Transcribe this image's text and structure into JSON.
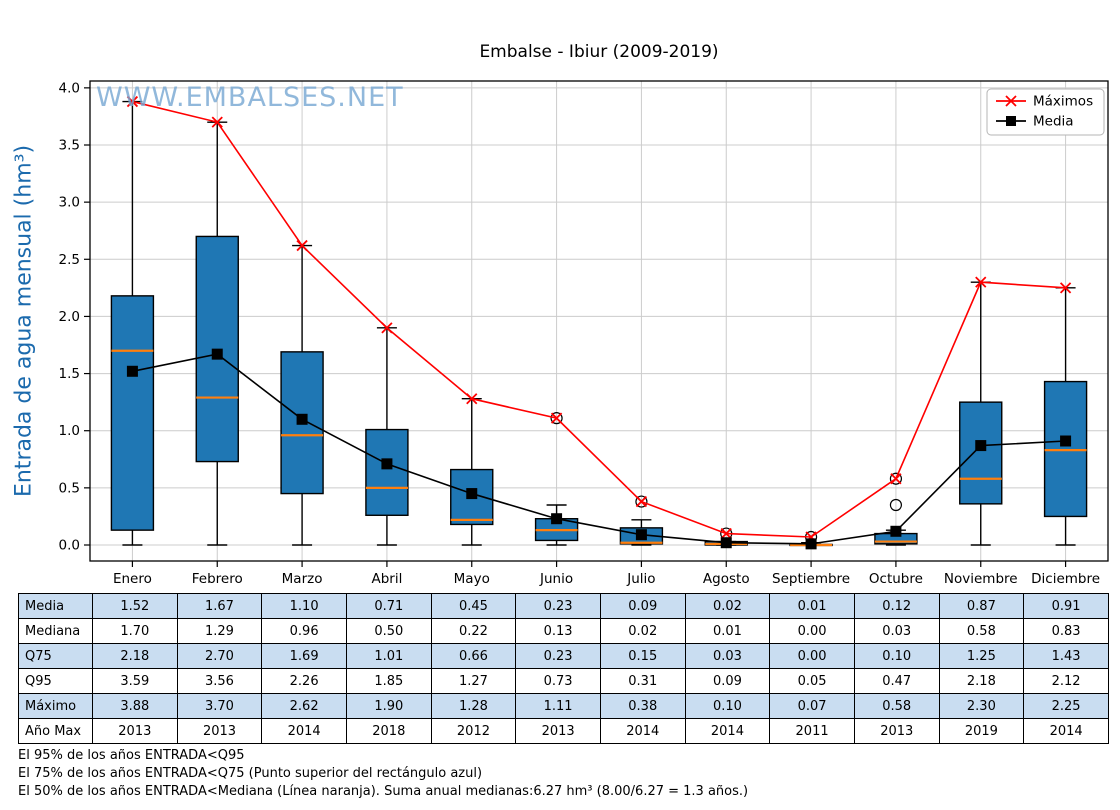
{
  "title": "Embalse - Ibiur (2009-2019)",
  "watermark": "WWW.EMBALSES.NET",
  "ylabel": "Entrada de agua mensual (hm³)",
  "colors": {
    "box_fill": "#1f77b4",
    "box_edge": "#000000",
    "median_line": "#ff7f0e",
    "maximos_line": "#ff0000",
    "media_line": "#000000",
    "grid": "#cccccc",
    "frame": "#000000",
    "table_alt_row": "#c9ddf1",
    "watermark": "#76a7d3",
    "ylabel": "#1b6aad",
    "legend_border": "#b5b5b5"
  },
  "chart_data": {
    "type": "boxplot_with_lines",
    "title": "Embalse - Ibiur (2009-2019)",
    "ylabel": "Entrada de agua mensual (hm³)",
    "categories": [
      "Enero",
      "Febrero",
      "Marzo",
      "Abril",
      "Mayo",
      "Junio",
      "Julio",
      "Agosto",
      "Septiembre",
      "Octubre",
      "Noviembre",
      "Diciembre"
    ],
    "ylim": [
      -0.14,
      4.06
    ],
    "yticks": [
      0.0,
      0.5,
      1.0,
      1.5,
      2.0,
      2.5,
      3.0,
      3.5,
      4.0
    ],
    "grid": true,
    "legend_position": "top-right",
    "series": [
      {
        "name": "Máximos",
        "marker": "x",
        "color": "#ff0000",
        "values": [
          3.88,
          3.7,
          2.62,
          1.9,
          1.28,
          1.11,
          0.38,
          0.1,
          0.07,
          0.58,
          2.3,
          2.25
        ]
      },
      {
        "name": "Media",
        "marker": "square",
        "color": "#000000",
        "values": [
          1.52,
          1.67,
          1.1,
          0.71,
          0.45,
          0.23,
          0.09,
          0.02,
          0.01,
          0.12,
          0.87,
          0.91
        ]
      }
    ],
    "boxplot": {
      "q1": [
        0.13,
        0.73,
        0.45,
        0.26,
        0.18,
        0.04,
        0.01,
        0.0,
        0.0,
        0.01,
        0.36,
        0.25
      ],
      "median": [
        1.7,
        1.29,
        0.96,
        0.5,
        0.22,
        0.13,
        0.02,
        0.01,
        0.0,
        0.03,
        0.58,
        0.83
      ],
      "q3": [
        2.18,
        2.7,
        1.69,
        1.01,
        0.66,
        0.23,
        0.15,
        0.03,
        0.005,
        0.1,
        1.25,
        1.43
      ],
      "whisker_low": [
        0.0,
        0.0,
        0.0,
        0.0,
        0.0,
        0.0,
        0.0,
        0.0,
        0.0,
        0.0,
        0.0,
        0.0
      ],
      "whisker_high": [
        3.88,
        3.7,
        2.62,
        1.9,
        1.28,
        0.35,
        0.22,
        0.03,
        0.02,
        0.13,
        2.3,
        2.25
      ],
      "outliers": [
        [],
        [],
        [],
        [],
        [],
        [
          1.11
        ],
        [
          0.38
        ],
        [
          0.1
        ],
        [
          0.07
        ],
        [
          0.35,
          0.58
        ],
        [],
        []
      ]
    }
  },
  "table": {
    "row_labels": [
      "Media",
      "Mediana",
      "Q75",
      "Q95",
      "Máximo",
      "Año Max"
    ],
    "rows": [
      [
        "1.52",
        "1.67",
        "1.10",
        "0.71",
        "0.45",
        "0.23",
        "0.09",
        "0.02",
        "0.01",
        "0.12",
        "0.87",
        "0.91"
      ],
      [
        "1.70",
        "1.29",
        "0.96",
        "0.50",
        "0.22",
        "0.13",
        "0.02",
        "0.01",
        "0.00",
        "0.03",
        "0.58",
        "0.83"
      ],
      [
        "2.18",
        "2.70",
        "1.69",
        "1.01",
        "0.66",
        "0.23",
        "0.15",
        "0.03",
        "0.00",
        "0.10",
        "1.25",
        "1.43"
      ],
      [
        "3.59",
        "3.56",
        "2.26",
        "1.85",
        "1.27",
        "0.73",
        "0.31",
        "0.09",
        "0.05",
        "0.47",
        "2.18",
        "2.12"
      ],
      [
        "3.88",
        "3.70",
        "2.62",
        "1.90",
        "1.28",
        "1.11",
        "0.38",
        "0.10",
        "0.07",
        "0.58",
        "2.30",
        "2.25"
      ],
      [
        "2013",
        "2013",
        "2014",
        "2018",
        "2012",
        "2013",
        "2014",
        "2014",
        "2011",
        "2013",
        "2019",
        "2014"
      ]
    ]
  },
  "footnotes": [
    "El 95% de los años ENTRADA<Q95",
    "El 75% de los años ENTRADA<Q75 (Punto superior del rectángulo azul)",
    "El 50% de los años ENTRADA<Mediana (Línea naranja). Suma anual medianas:6.27 hm³ (8.00/6.27 = 1.3 años.)"
  ]
}
